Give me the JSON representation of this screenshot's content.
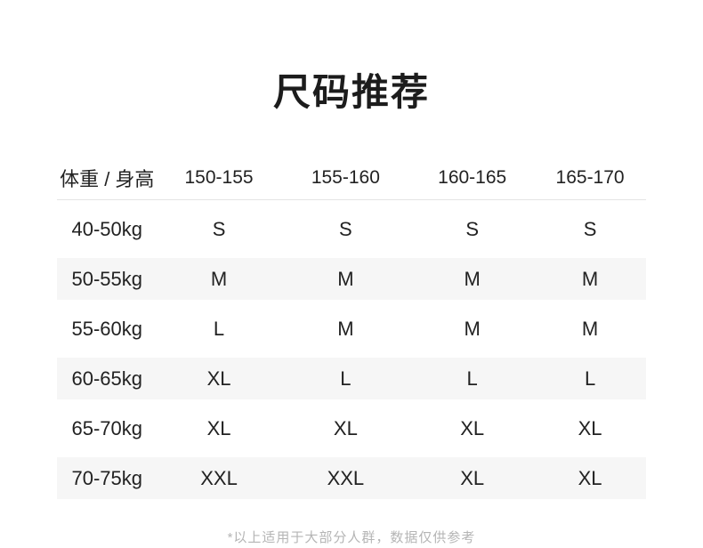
{
  "title": "尺码推荐",
  "table": {
    "header": [
      "体重 / 身高",
      "150-155",
      "155-160",
      "160-165",
      "165-170"
    ],
    "rows": [
      {
        "label": "40-50kg",
        "sizes": [
          "S",
          "S",
          "S",
          "S"
        ]
      },
      {
        "label": "50-55kg",
        "sizes": [
          "M",
          "M",
          "M",
          "M"
        ]
      },
      {
        "label": "55-60kg",
        "sizes": [
          "L",
          "M",
          "M",
          "M"
        ]
      },
      {
        "label": "60-65kg",
        "sizes": [
          "XL",
          "L",
          "L",
          "L"
        ]
      },
      {
        "label": "65-70kg",
        "sizes": [
          "XL",
          "XL",
          "XL",
          "XL"
        ]
      },
      {
        "label": "70-75kg",
        "sizes": [
          "XXL",
          "XXL",
          "XL",
          "XL"
        ]
      }
    ]
  },
  "footnote": "*以上适用于大部分人群，数据仅供参考",
  "colors": {
    "zebra_row": "#f6f6f6",
    "header_divider": "#e4e4e4",
    "text_dark": "#1f1f1f",
    "footnote_text": "#b5b5b5",
    "background": "#ffffff"
  }
}
